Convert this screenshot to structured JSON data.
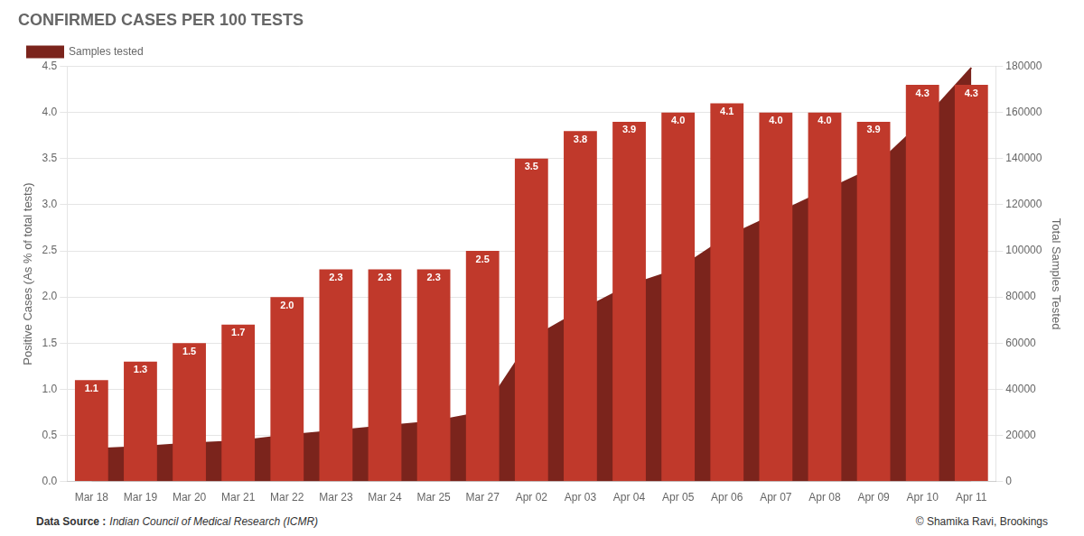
{
  "chart_data": {
    "type": "bar",
    "title": "CONFIRMED CASES PER 100 TESTS",
    "ylabel": "Positive Cases (As % of total tests)",
    "y2label": "Total Samples Tested",
    "annotations": [
      "Data Source :",
      "Indian Council of Medical Research (ICMR)",
      "© Shamika Ravi, Brookings"
    ],
    "categories": [
      "Mar 18",
      "Mar 19",
      "Mar 20",
      "Mar 21",
      "Mar 22",
      "Mar 23",
      "Mar 24",
      "Mar 25",
      "Mar 27",
      "Apr 02",
      "Apr 03",
      "Apr 04",
      "Apr 05",
      "Apr 06",
      "Apr 07",
      "Apr 08",
      "Apr 09",
      "Apr 10",
      "Apr 11"
    ],
    "series": [
      {
        "type": "bar",
        "color": "#c0392b",
        "data_labels": true,
        "values": [
          1.1,
          1.3,
          1.5,
          1.7,
          2.0,
          2.3,
          2.3,
          2.3,
          2.5,
          3.5,
          3.8,
          3.9,
          4.0,
          4.1,
          4.0,
          4.0,
          3.9,
          4.3,
          4.3
        ],
        "value_labels": [
          "1.1",
          "1.3",
          "1.5",
          "1.7",
          "2.0",
          "2.3",
          "2.3",
          "2.3",
          "2.5",
          "3.5",
          "3.8",
          "3.9",
          "4.0",
          "4.1",
          "4.0",
          "4.0",
          "3.9",
          "4.3",
          "4.3"
        ]
      },
      {
        "name": "Samples tested",
        "type": "area",
        "color": "#7b241c",
        "axis": "y2",
        "values": [
          14000,
          15000,
          16500,
          17500,
          20000,
          22000,
          24000,
          26000,
          30000,
          62000,
          74000,
          85000,
          92000,
          106000,
          116000,
          126000,
          136000,
          156000,
          179374
        ]
      }
    ],
    "ylim": [
      0,
      4.5
    ],
    "yticks": [
      {
        "value": 0,
        "label": "0.0"
      },
      0.5,
      {
        "value": 1,
        "label": "1.0"
      },
      1.5,
      {
        "value": 2,
        "label": "2.0"
      },
      2.5,
      {
        "value": 3,
        "label": "3.0"
      },
      3.5,
      {
        "value": 4,
        "label": "4.0"
      },
      4.5
    ],
    "y2lim": [
      0,
      180000
    ],
    "y2ticks": [
      0,
      20000,
      40000,
      60000,
      80000,
      100000,
      120000,
      140000,
      160000,
      180000
    ],
    "grid": true,
    "legend": "upper left"
  }
}
